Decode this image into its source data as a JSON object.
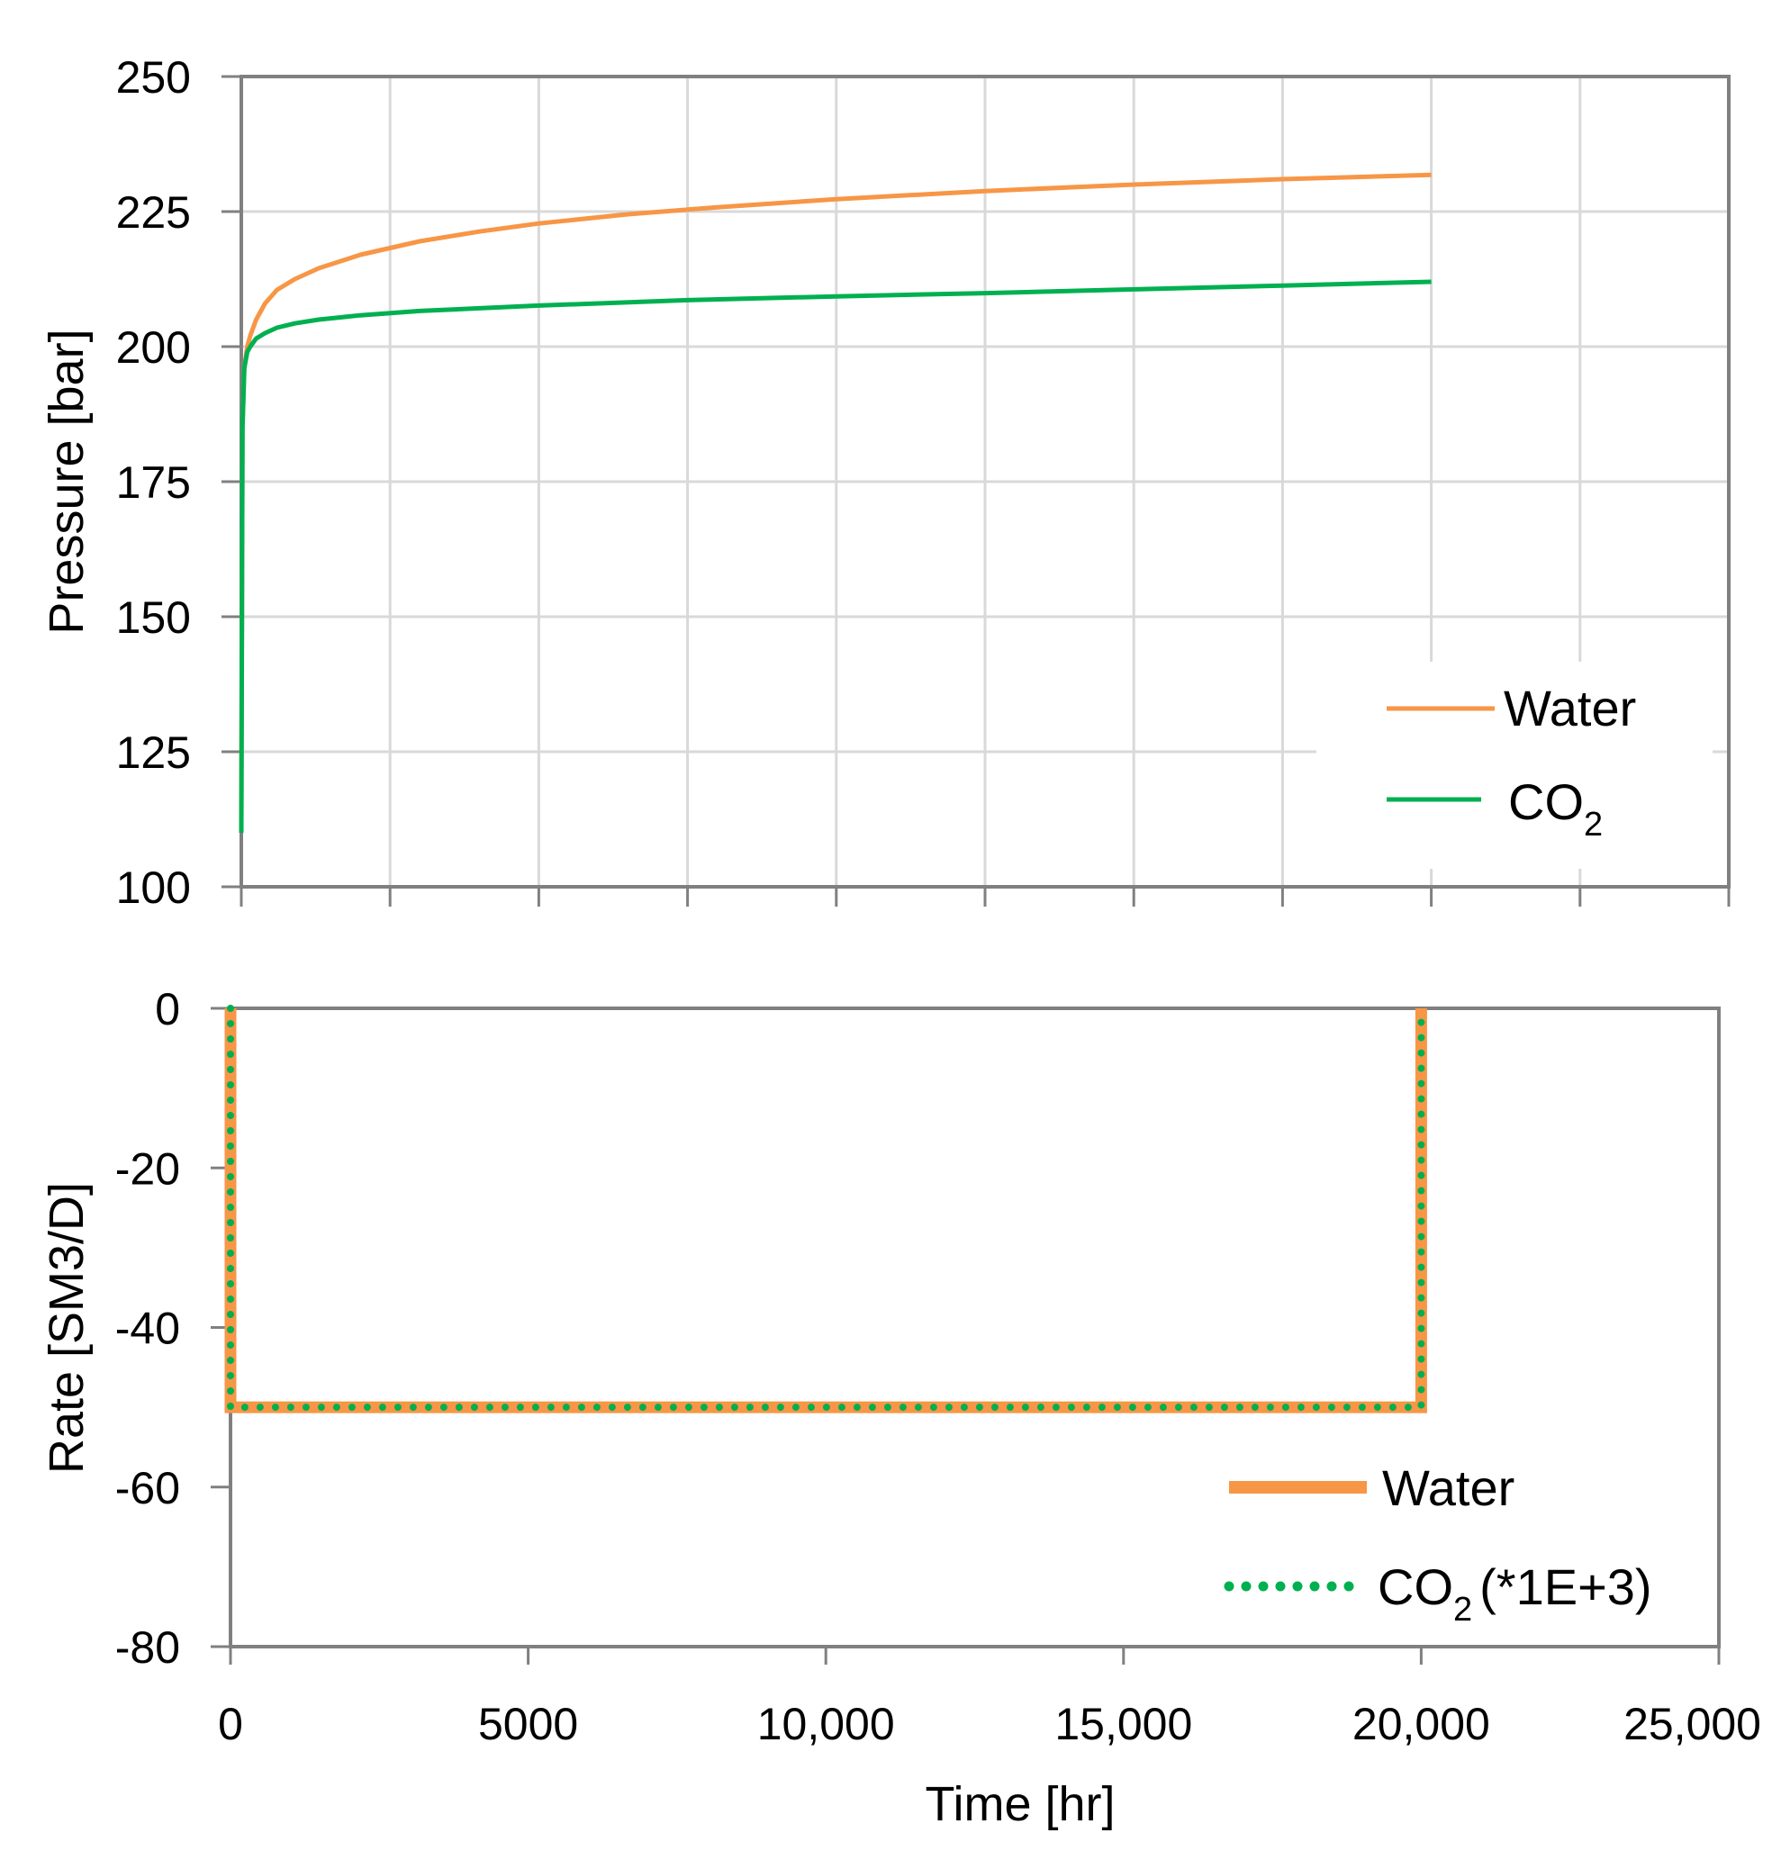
{
  "colors": {
    "water": "#F79646",
    "co2": "#00B050",
    "grid": "#D9D9D9",
    "frame": "#808080"
  },
  "chart_data": [
    {
      "type": "line",
      "title": "",
      "xlabel": "",
      "ylabel": "Pressure [bar]",
      "xlim": [
        0,
        25000
      ],
      "ylim": [
        100,
        250
      ],
      "yticks": [
        100,
        125,
        150,
        175,
        200,
        225,
        250
      ],
      "ytick_labels": [
        "100",
        "125",
        "150",
        "175",
        "200",
        "225",
        "250"
      ],
      "xticks": [
        0,
        2500,
        5000,
        7500,
        10000,
        12500,
        15000,
        17500,
        20000,
        22500,
        25000
      ],
      "grid": true,
      "legend_position": "bottom-right",
      "series": [
        {
          "name": "Water",
          "legend_main": "Water",
          "legend_sub": "",
          "color": "#F79646",
          "x": [
            0,
            20,
            50,
            100,
            150,
            250,
            400,
            600,
            900,
            1300,
            2000,
            3000,
            4000,
            5000,
            6500,
            8000,
            10000,
            12500,
            15000,
            17500,
            20000
          ],
          "y": [
            110,
            185,
            196,
            200,
            202,
            205,
            208,
            210.5,
            212.5,
            214.5,
            217,
            219.5,
            221.3,
            222.8,
            224.5,
            225.8,
            227.3,
            228.8,
            230,
            231,
            231.8
          ]
        },
        {
          "name": "CO2",
          "legend_main": "CO",
          "legend_sub": "2",
          "color": "#00B050",
          "x": [
            0,
            20,
            50,
            100,
            150,
            250,
            400,
            600,
            900,
            1300,
            2000,
            3000,
            5000,
            7500,
            10000,
            12500,
            15000,
            17500,
            20000
          ],
          "y": [
            110,
            185,
            196,
            199,
            200,
            201.5,
            202.5,
            203.5,
            204.3,
            205,
            205.8,
            206.6,
            207.6,
            208.6,
            209.3,
            209.9,
            210.6,
            211.3,
            212
          ]
        }
      ]
    },
    {
      "type": "line",
      "title": "",
      "xlabel": "Time [hr]",
      "ylabel": "Rate [SM3/D]",
      "xlim": [
        0,
        25000
      ],
      "ylim": [
        -80,
        0
      ],
      "yticks": [
        -80,
        -60,
        -40,
        -20,
        0
      ],
      "ytick_labels": [
        "-80",
        "-60",
        "-40",
        "-20",
        "0"
      ],
      "xticks": [
        0,
        5000,
        10000,
        15000,
        20000,
        25000
      ],
      "xtick_labels": [
        "0",
        "5000",
        "10,000",
        "15,000",
        "20,000",
        "25,000"
      ],
      "grid": false,
      "legend_position": "bottom-right",
      "series": [
        {
          "name": "Water",
          "legend_main": "Water",
          "legend_sub": "",
          "legend_suffix": "",
          "color": "#F79646",
          "style": "solid",
          "x": [
            0,
            0,
            20000,
            20000
          ],
          "y": [
            0,
            -50,
            -50,
            0
          ]
        },
        {
          "name": "CO2 (*1E+3)",
          "legend_main": "CO",
          "legend_sub": "2",
          "legend_suffix": "(*1E+3)",
          "color": "#00B050",
          "style": "dotted",
          "x": [
            0,
            0,
            20000,
            20000
          ],
          "y": [
            0,
            -50,
            -50,
            0
          ]
        }
      ]
    }
  ]
}
